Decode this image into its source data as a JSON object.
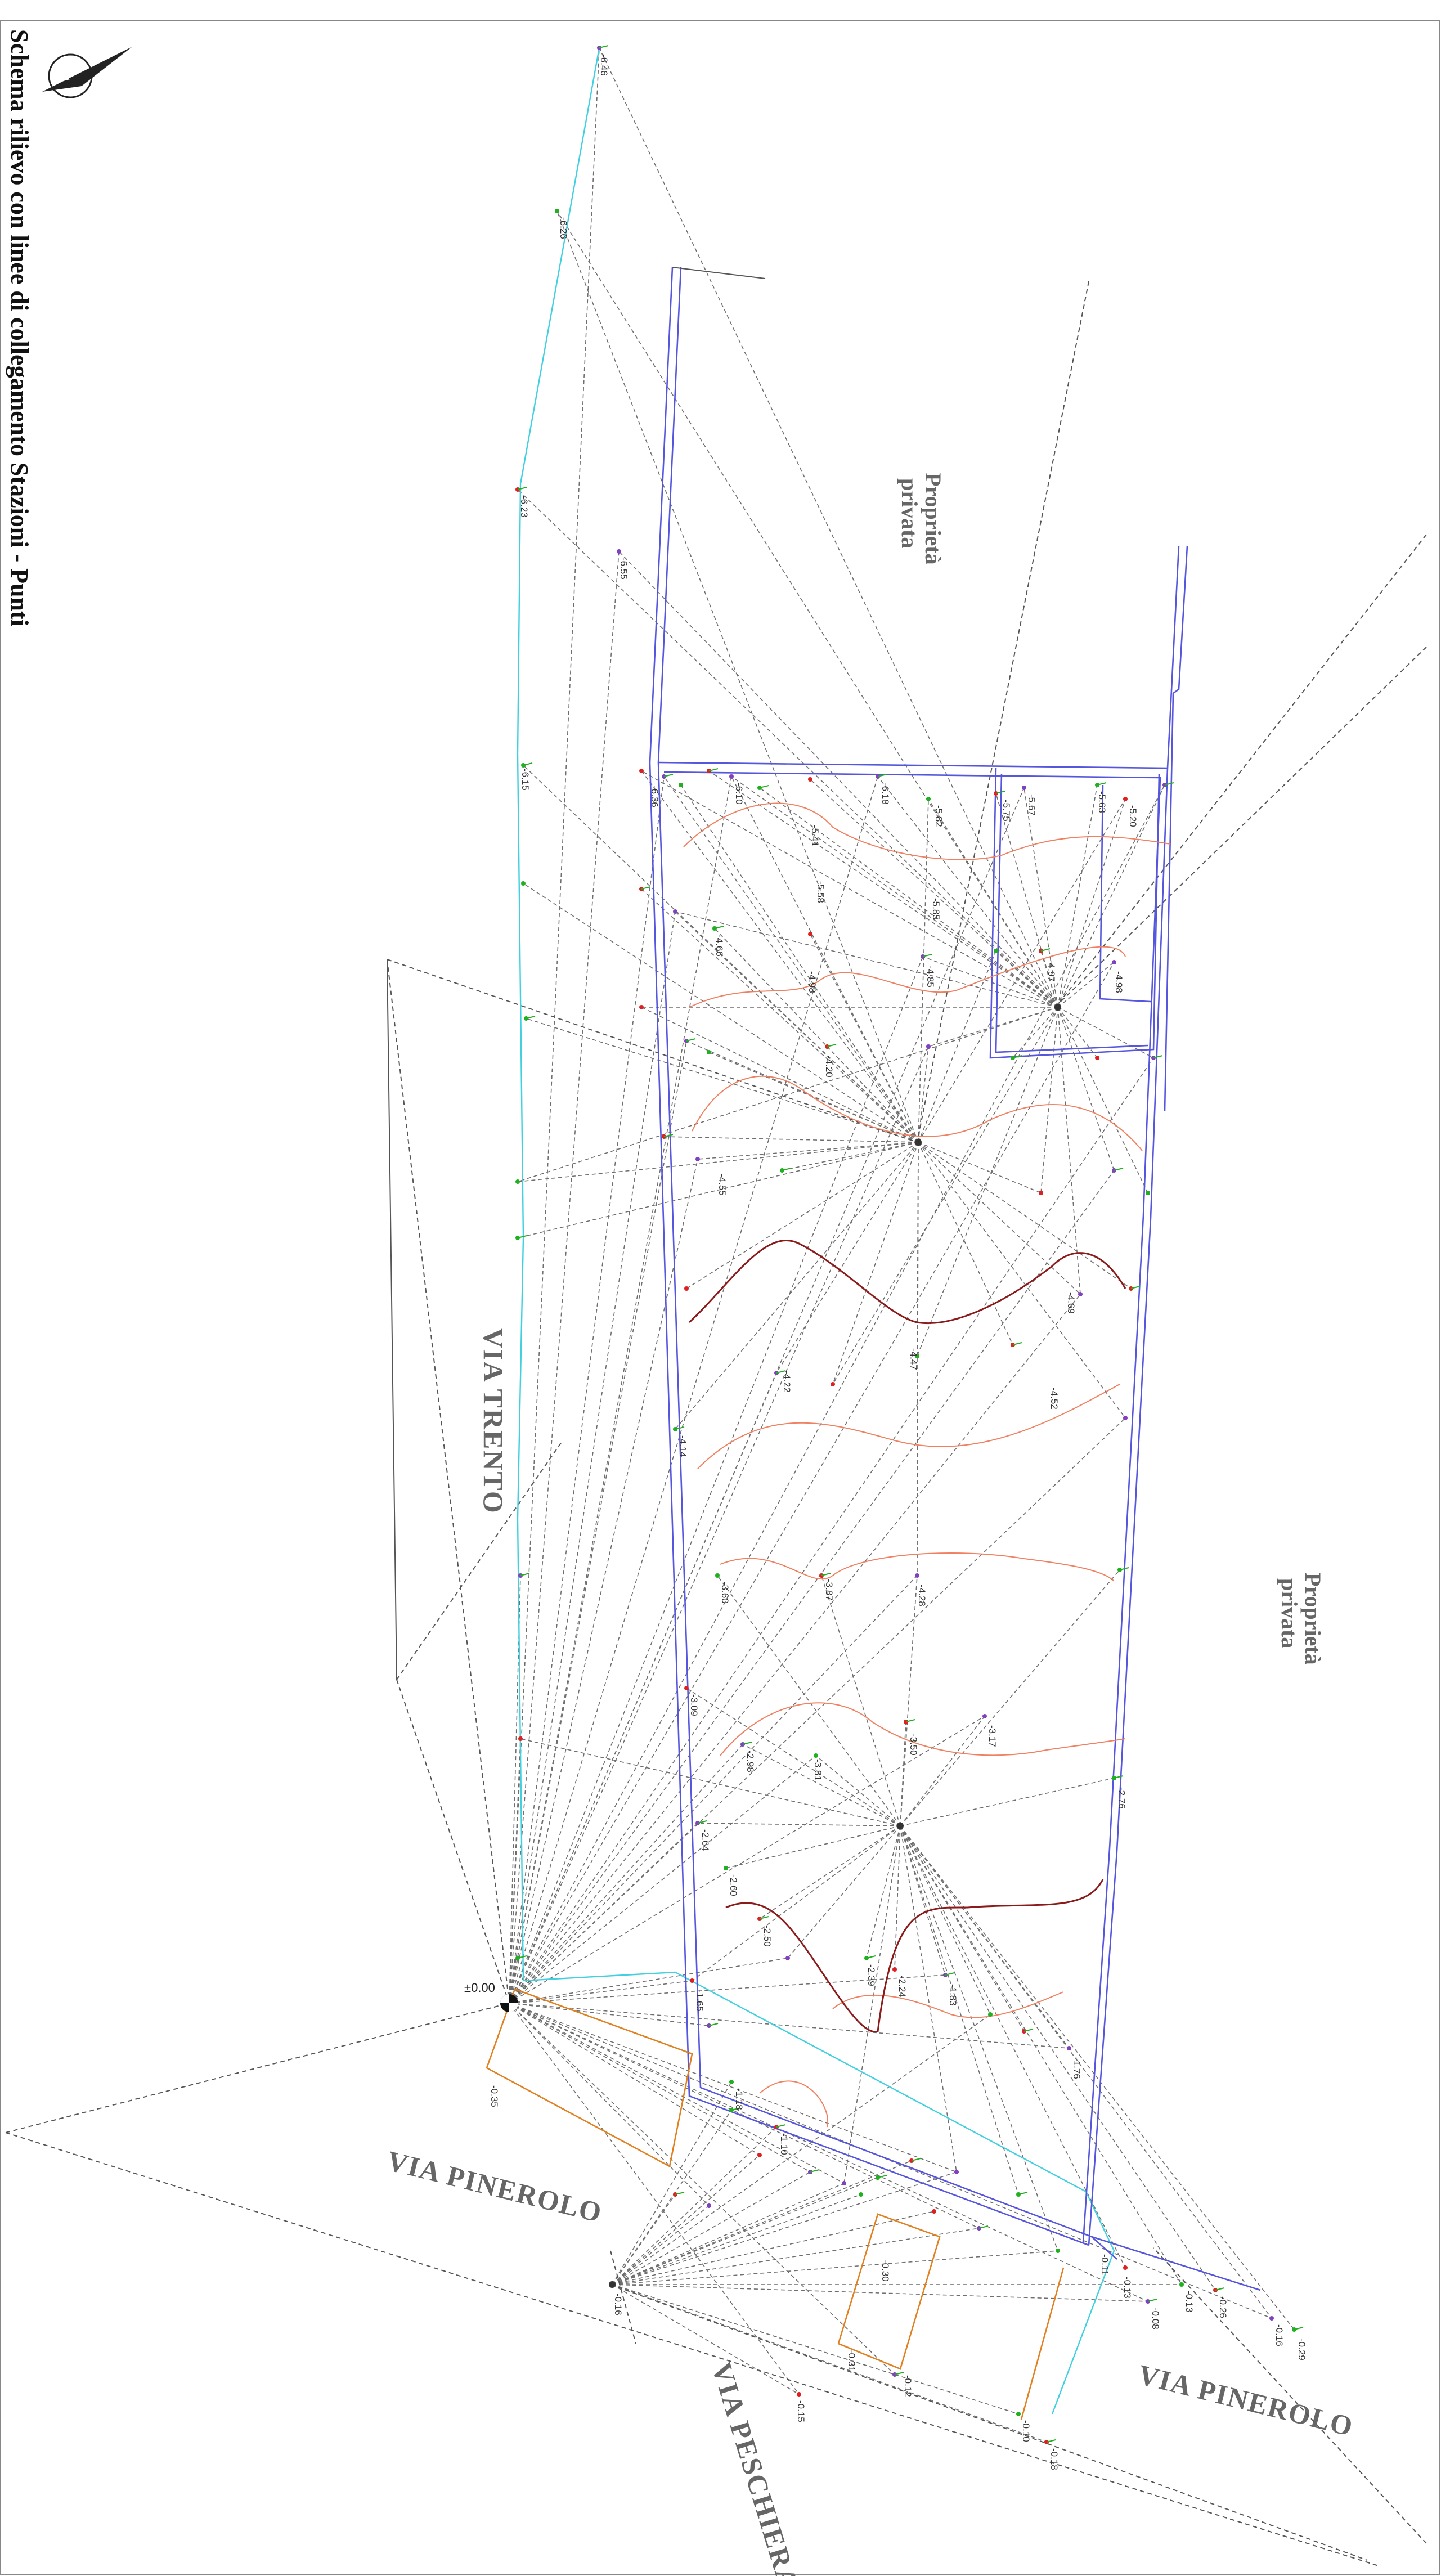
{
  "title": "Schema rilievo con linee di collegamento Stazioni - Punti",
  "streets": {
    "via_trento": "VIA TRENTO",
    "via_pinerolo_left": "VIA PINEROLO",
    "via_pinerolo_right": "VIA PINEROLO",
    "via_peschiera": "VIA PESCHIERA"
  },
  "properties": {
    "top": [
      "Proprietà",
      "privata"
    ],
    "right": [
      "Proprietà",
      "privata"
    ]
  },
  "origin_label": "±0.00",
  "icons": {
    "north_arrow": "north-arrow-icon",
    "station_marker": "station-marker-icon"
  },
  "colors": {
    "background": "#ffffff",
    "frame": "#888888",
    "boundary": "#5555dd",
    "station_lines": "#555555",
    "contour": "#f08060",
    "contour_dark": "#8b1a1a",
    "cyan_line": "#40d0e0",
    "orange_line": "#e08020",
    "point_green": "#20b020",
    "point_purple": "#8040c0",
    "point_red": "#e02020"
  },
  "elevation_labels": [
    "-6.46",
    "-6.26",
    "-6.23",
    "-6.55",
    "-6.15",
    "-6.36",
    "-6.10",
    "-6.18",
    "-5.82",
    "-5.75",
    "-5.67",
    "-5.63",
    "-5.20",
    "-5.41",
    "-5.58",
    "-5.85",
    "-4.98",
    "-4.85",
    "-4.98",
    "-4.97",
    "-4.66",
    "-4.20",
    "-4.55",
    "-4.47",
    "-4.69",
    "-4.52",
    "-4.22",
    "-4.14",
    "-4.28",
    "-3.87",
    "-3.60",
    "-3.81",
    "-3.50",
    "-3.17",
    "-3.09",
    "-2.98",
    "-2.76",
    "-2.64",
    "-2.60",
    "-2.50",
    "-2.39",
    "-2.24",
    "-1.83",
    "-1.76",
    "-1.65",
    "-1.18",
    "-1.10",
    "-0.35",
    "-0.15",
    "-0.30",
    "-0.31",
    "-0.11",
    "-0.13",
    "-0.08",
    "-0.13",
    "-0.26",
    "-0.16",
    "-0.29",
    "-0.12",
    "-0.10",
    "-0.18",
    "-0.16"
  ]
}
